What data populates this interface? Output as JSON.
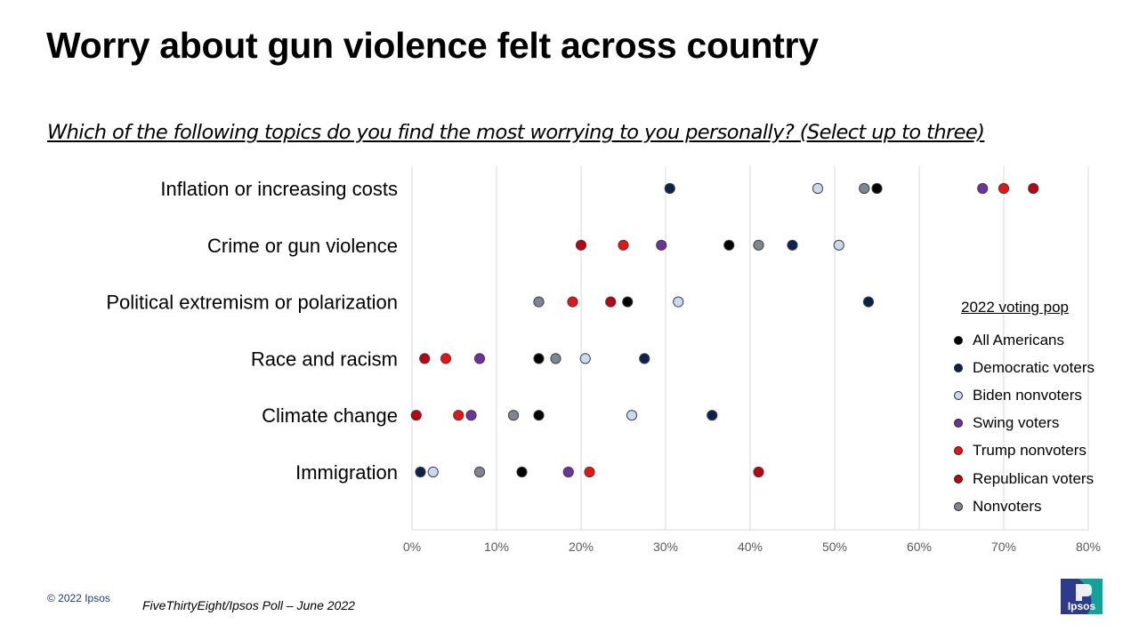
{
  "title": "Worry about gun violence felt across country",
  "subtitle": "Which of the following topics do you find the most worrying to you personally?  (Select up to three)",
  "legend_title": "2022 voting pop",
  "footer": {
    "copyright": "© 2022 Ipsos",
    "source": "FiveThirtyEight/Ipsos Poll – June 2022",
    "logo_text": "Ipsos"
  },
  "colors": {
    "logo_blue": "#2e3a8c",
    "logo_teal": "#10a39b",
    "gridline": "#d9d9d9",
    "marker_border": "#404040"
  },
  "chart_data": {
    "type": "scatter",
    "orientation": "horizontal-dot-plot",
    "categories": [
      "Inflation or increasing costs",
      "Crime or gun violence",
      "Political extremism or polarization",
      "Race and racism",
      "Climate change",
      "Immigration"
    ],
    "xlim": [
      0,
      80
    ],
    "x_ticks": [
      "0%",
      "10%",
      "20%",
      "30%",
      "40%",
      "50%",
      "60%",
      "70%",
      "80%"
    ],
    "grid": "vertical",
    "legend_position": "right",
    "series": [
      {
        "name": "All Americans",
        "color": "#000000",
        "values": [
          55,
          37.5,
          25.5,
          15,
          15,
          13
        ]
      },
      {
        "name": "Democratic voters",
        "color": "#0b2151",
        "values": [
          30.5,
          45,
          54,
          27.5,
          35.5,
          1
        ]
      },
      {
        "name": "Biden nonvoters",
        "color": "#c9d9f2",
        "values": [
          48,
          50.5,
          31.5,
          20.5,
          26,
          2.5
        ]
      },
      {
        "name": "Swing voters",
        "color": "#7030a0",
        "values": [
          67.5,
          29.5,
          null,
          8,
          7,
          18.5
        ]
      },
      {
        "name": "Trump nonvoters",
        "color": "#ee1111",
        "values": [
          70,
          25,
          19,
          4,
          5.5,
          21
        ]
      },
      {
        "name": "Republican voters",
        "color": "#c00010",
        "values": [
          73.5,
          20,
          23.5,
          1.5,
          0.5,
          41
        ]
      },
      {
        "name": "Nonvoters",
        "color": "#7f8592",
        "values": [
          53.5,
          41,
          15,
          17,
          12,
          8
        ]
      }
    ]
  }
}
